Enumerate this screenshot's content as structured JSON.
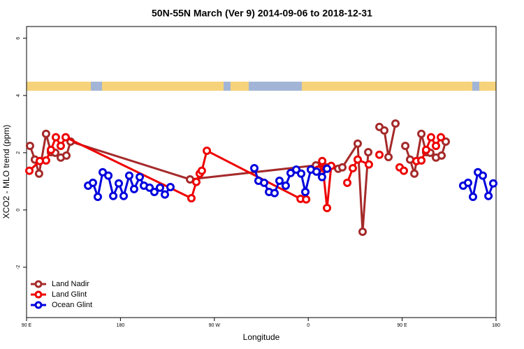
{
  "chart_data": {
    "type": "line",
    "title": "50N-55N March (Ver 9)   2014-09-06 to 2018-12-31",
    "x_label": "Longitude",
    "y_label": "XCO2 - MLO trend (ppm)",
    "xlim": [
      -270,
      180
    ],
    "xticks": [
      {
        "value": -270,
        "label": "90 E"
      },
      {
        "value": -180,
        "label": "180"
      },
      {
        "value": -90,
        "label": "90 W"
      },
      0,
      {
        "value": 90,
        "label": "90 E"
      },
      {
        "value": 180,
        "label": "180"
      }
    ],
    "ylim": [
      -3.76,
      6.41
    ],
    "yticks": [
      -2,
      0,
      2,
      4,
      6
    ],
    "legend": "bottom-left",
    "series": [
      {
        "name": "Land Nadir",
        "color": "#a52a2a",
        "x": [
          -266.7,
          -262,
          -258,
          -251.3,
          -246.6,
          -242.5,
          -237.2,
          -231.8,
          -227.8,
          -113.3,
          7.4,
          18,
          28.7,
          32.7,
          47.4,
          52.1,
          57.5,
          62,
          68.2,
          72.9,
          76.9,
          83.6,
          88,
          93,
          97.6,
          101.7,
          108.4,
          113,
          117,
          122.4,
          127.8,
          131.8
        ],
        "values": [
          2.24,
          1.76,
          1.27,
          2.66,
          2.02,
          2.0,
          1.83,
          1.9,
          2.39,
          1.07,
          1.56,
          1.49,
          1.44,
          1.49,
          2.32,
          -0.76,
          2.02,
          null,
          2.9,
          2.78,
          1.85,
          3.02,
          null,
          2.24,
          1.76,
          1.27,
          2.66,
          2.02,
          2.0,
          1.83,
          1.9,
          2.39
        ]
      },
      {
        "name": "Land Glint",
        "color": "#ee0000",
        "x": [
          -267.3,
          -257.3,
          -251.3,
          -246.6,
          -241.9,
          -237.2,
          -232.5,
          -112,
          -107.3,
          -104,
          -102,
          -97.2,
          -7.4,
          -2,
          4,
          9.4,
          13.4,
          18,
          22,
          30,
          37.4,
          42.7,
          47.4,
          58.1,
          63,
          68.2,
          80,
          87.6,
          91.6,
          98,
          103.7,
          108.4,
          113,
          117.7,
          122.4,
          127.1
        ],
        "values": [
          1.37,
          1.71,
          1.73,
          2.1,
          2.54,
          2.24,
          2.54,
          0.41,
          0.98,
          1.27,
          1.37,
          2.07,
          0.39,
          0.37,
          null,
          1.41,
          1.71,
          0.07,
          1.54,
          null,
          0.95,
          1.46,
          1.76,
          1.59,
          null,
          1.93,
          null,
          1.49,
          1.37,
          null,
          1.71,
          1.73,
          2.1,
          2.54,
          2.24,
          2.54
        ]
      },
      {
        "name": "Ocean Glint",
        "color": "#0000dd",
        "x": [
          -211,
          -206.4,
          -201.7,
          -197,
          -191.6,
          -186.9,
          -181.6,
          -176.9,
          -171.6,
          -166.9,
          -161.5,
          -157.5,
          -152.1,
          -147.5,
          -142.1,
          -137.4,
          -132.1,
          -60,
          -51.7,
          -47.7,
          -42.3,
          -37.6,
          -32.3,
          -27.6,
          -21.6,
          -16.9,
          -11.5,
          -6.8,
          -2.8,
          2.5,
          7.9,
          13.2,
          18,
          140,
          148.5,
          153.2,
          157.9,
          162.6,
          167.3,
          172.7,
          177.3
        ],
        "values": [
          0.85,
          0.95,
          0.46,
          1.32,
          1.2,
          0.49,
          0.93,
          0.49,
          1.2,
          0.73,
          1.15,
          0.85,
          0.78,
          0.63,
          0.78,
          0.54,
          0.8,
          null,
          1.46,
          1.02,
          0.95,
          0.63,
          0.59,
          1.02,
          0.85,
          1.29,
          1.41,
          1.27,
          0.63,
          1.41,
          1.34,
          1.15,
          1.44,
          null,
          0.85,
          0.95,
          0.46,
          1.32,
          1.2,
          0.49,
          0.93
        ]
      }
    ]
  }
}
